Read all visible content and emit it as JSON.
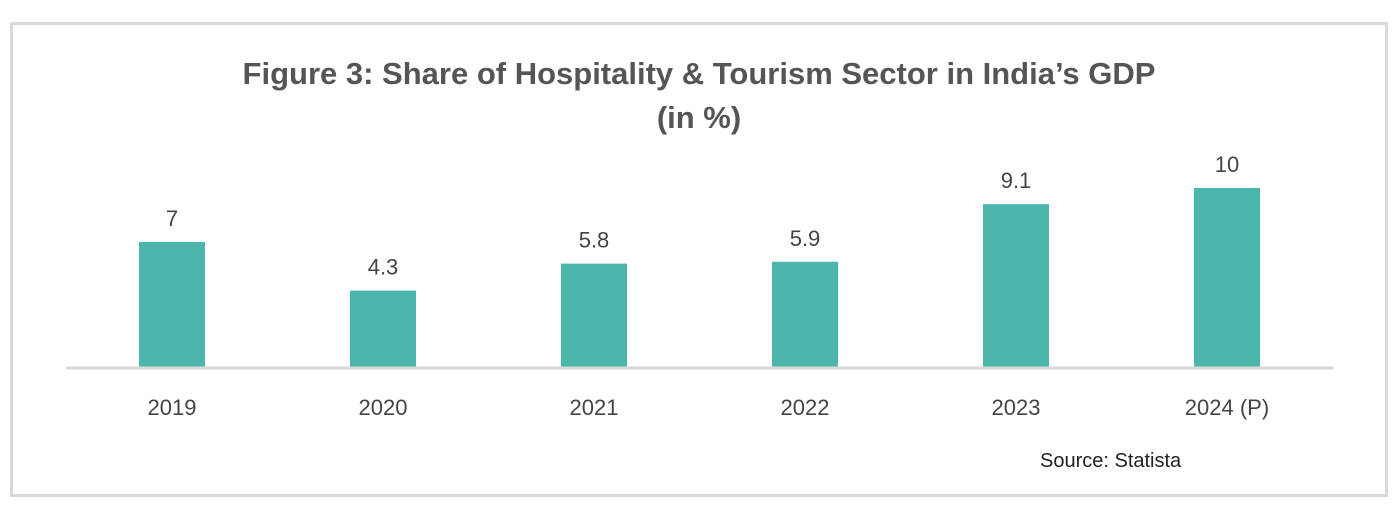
{
  "chart_data": {
    "type": "bar",
    "title": "Figure 3: Share of Hospitality & Tourism Sector in India’s  GDP",
    "subtitle": "(in %)",
    "categories": [
      "2019",
      "2020",
      "2021",
      "2022",
      "2023",
      "2024 (P)"
    ],
    "values": [
      7,
      4.3,
      5.8,
      5.9,
      9.1,
      10
    ],
    "data_labels": [
      "7",
      "4.3",
      "5.8",
      "5.9",
      "9.1",
      "10"
    ],
    "xlabel": "",
    "ylabel": "",
    "ylim": [
      0,
      10
    ],
    "grid": false,
    "bar_color": "#4db6ac",
    "source": "Source: Statista"
  }
}
